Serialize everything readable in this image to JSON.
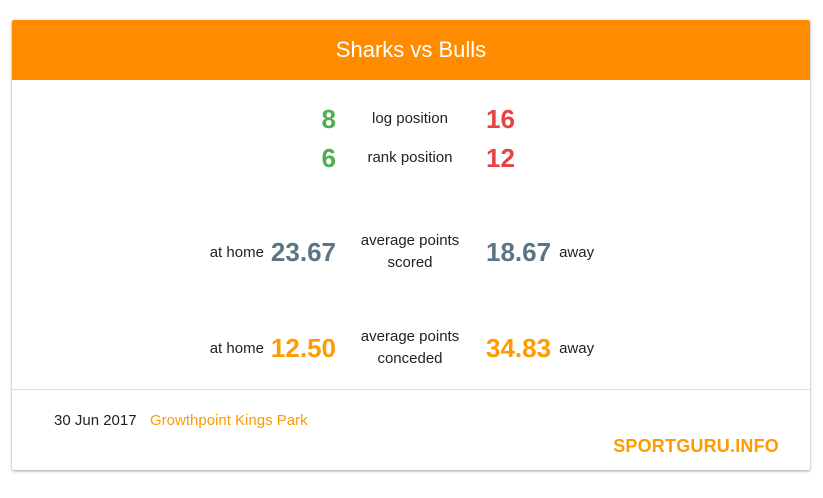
{
  "colors": {
    "accent": "#FF8C00",
    "positive": "#4CAF50",
    "negative": "#E84343",
    "scored": "#5A7685",
    "conceded": "#FF9A00"
  },
  "header": {
    "title": "Sharks vs Bulls"
  },
  "log_position": {
    "label": "log position",
    "home": "8",
    "away": "16"
  },
  "rank_position": {
    "label": "rank position",
    "home": "6",
    "away": "12"
  },
  "points_scored": {
    "label_line1": "average points",
    "label_line2": "scored",
    "home_label": "at home",
    "home_value": "23.67",
    "away_value": "18.67",
    "away_label": "away"
  },
  "points_conceded": {
    "label_line1": "average points",
    "label_line2": "conceded",
    "home_label": "at home",
    "home_value": "12.50",
    "away_value": "34.83",
    "away_label": "away"
  },
  "footer": {
    "date": "30 Jun 2017",
    "venue": "Growthpoint Kings Park",
    "brand": "SPORTGURU.INFO"
  }
}
